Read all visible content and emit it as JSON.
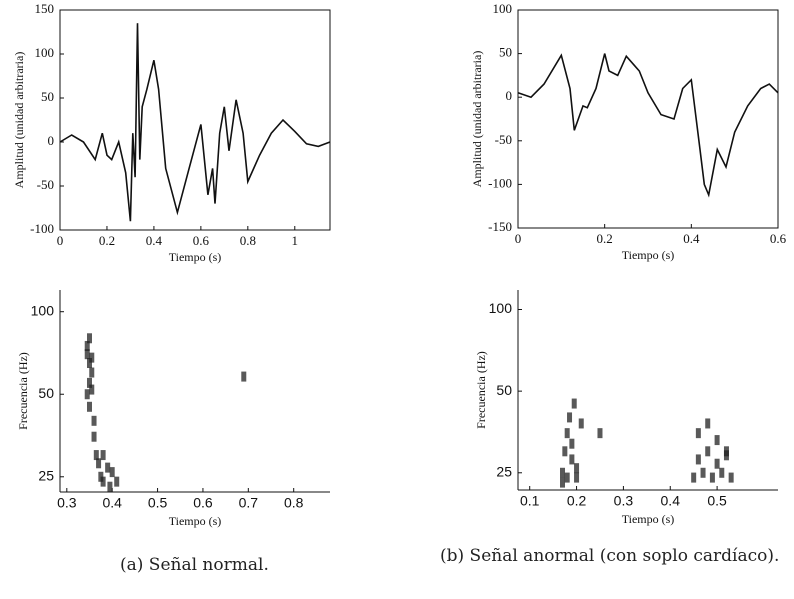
{
  "chart_data": [
    {
      "type": "line",
      "xlabel": "Tiempo (s)",
      "ylabel": "Amplitud (unidad arbitraria)",
      "color": "#111",
      "frame": true,
      "x": [
        0,
        0.05,
        0.1,
        0.15,
        0.18,
        0.2,
        0.22,
        0.25,
        0.28,
        0.3,
        0.31,
        0.32,
        0.33,
        0.34,
        0.35,
        0.37,
        0.4,
        0.42,
        0.45,
        0.5,
        0.55,
        0.6,
        0.63,
        0.65,
        0.66,
        0.68,
        0.7,
        0.72,
        0.75,
        0.78,
        0.8,
        0.85,
        0.9,
        0.95,
        1.0,
        1.05,
        1.1,
        1.15
      ],
      "values": [
        0,
        8,
        0,
        -20,
        10,
        -15,
        -20,
        0,
        -35,
        -90,
        10,
        -40,
        135,
        -20,
        40,
        60,
        93,
        60,
        -30,
        -80,
        -30,
        20,
        -60,
        -30,
        -70,
        10,
        40,
        -10,
        48,
        10,
        -45,
        -15,
        10,
        25,
        12,
        -2,
        -5,
        0
      ],
      "xlim": [
        0,
        1.15
      ],
      "xticks": [
        0,
        0.2,
        0.4,
        0.6,
        0.8,
        1
      ],
      "ylim": [
        -100,
        150
      ],
      "yticks": [
        -100,
        -50,
        0,
        50,
        100,
        150
      ]
    },
    {
      "type": "line",
      "xlabel": "Tiempo (s)",
      "ylabel": "Amplitud (unidad arbitraria)",
      "color": "#111",
      "frame": true,
      "x": [
        0,
        0.03,
        0.06,
        0.1,
        0.12,
        0.13,
        0.15,
        0.16,
        0.18,
        0.2,
        0.21,
        0.23,
        0.25,
        0.28,
        0.3,
        0.33,
        0.36,
        0.38,
        0.4,
        0.42,
        0.43,
        0.44,
        0.46,
        0.48,
        0.5,
        0.53,
        0.56,
        0.58,
        0.6
      ],
      "values": [
        5,
        0,
        15,
        48,
        10,
        -38,
        -10,
        -12,
        10,
        50,
        30,
        25,
        47,
        30,
        5,
        -20,
        -25,
        10,
        20,
        -60,
        -100,
        -112,
        -60,
        -80,
        -40,
        -10,
        10,
        15,
        5
      ],
      "xlim": [
        0,
        0.6
      ],
      "xticks": [
        0,
        0.2,
        0.4,
        0.6
      ],
      "ylim": [
        -150,
        100
      ],
      "yticks": [
        -150,
        -100,
        -50,
        0,
        50,
        100
      ]
    },
    {
      "type": "scatter",
      "xlabel": "Tiempo (s)",
      "ylabel": "Frecuencia (Hz)",
      "color": "#222",
      "frame": false,
      "log_y": true,
      "x": [
        0.345,
        0.35,
        0.355,
        0.35,
        0.345,
        0.355,
        0.35,
        0.36,
        0.345,
        0.35,
        0.355,
        0.36,
        0.37,
        0.375,
        0.38,
        0.39,
        0.395,
        0.4,
        0.41,
        0.365,
        0.38,
        0.69
      ],
      "values": [
        70,
        65,
        60,
        55,
        50,
        52,
        45,
        40,
        75,
        80,
        68,
        35,
        28,
        25,
        24,
        27,
        23,
        26,
        24,
        30,
        30,
        58
      ],
      "xlim": [
        0.285,
        0.88
      ],
      "xticks": [
        0.3,
        0.4,
        0.5,
        0.6,
        0.7,
        0.8
      ],
      "ylim": [
        22,
        120
      ],
      "yticks": [
        25,
        50,
        100
      ]
    },
    {
      "type": "scatter",
      "xlabel": "Tiempo (s)",
      "ylabel": "Frecuencia (Hz)",
      "color": "#222",
      "frame": false,
      "log_y": true,
      "x": [
        0.17,
        0.175,
        0.18,
        0.185,
        0.19,
        0.195,
        0.2,
        0.18,
        0.19,
        0.2,
        0.21,
        0.17,
        0.25,
        0.45,
        0.46,
        0.47,
        0.48,
        0.49,
        0.5,
        0.51,
        0.52,
        0.53,
        0.46,
        0.48,
        0.5,
        0.52
      ],
      "values": [
        25,
        30,
        35,
        40,
        28,
        45,
        24,
        24,
        32,
        26,
        38,
        23,
        35,
        24,
        28,
        25,
        30,
        24,
        27,
        25,
        29,
        24,
        35,
        38,
        33,
        30
      ],
      "xlim": [
        0.075,
        0.63
      ],
      "xticks": [
        0.1,
        0.2,
        0.3,
        0.4,
        0.5
      ],
      "ylim": [
        21.6,
        118
      ],
      "yticks": [
        25,
        50,
        100
      ]
    }
  ],
  "captions": [
    "(a) Señal normal.",
    "(b) Señal anormal (con soplo cardíaco)."
  ]
}
